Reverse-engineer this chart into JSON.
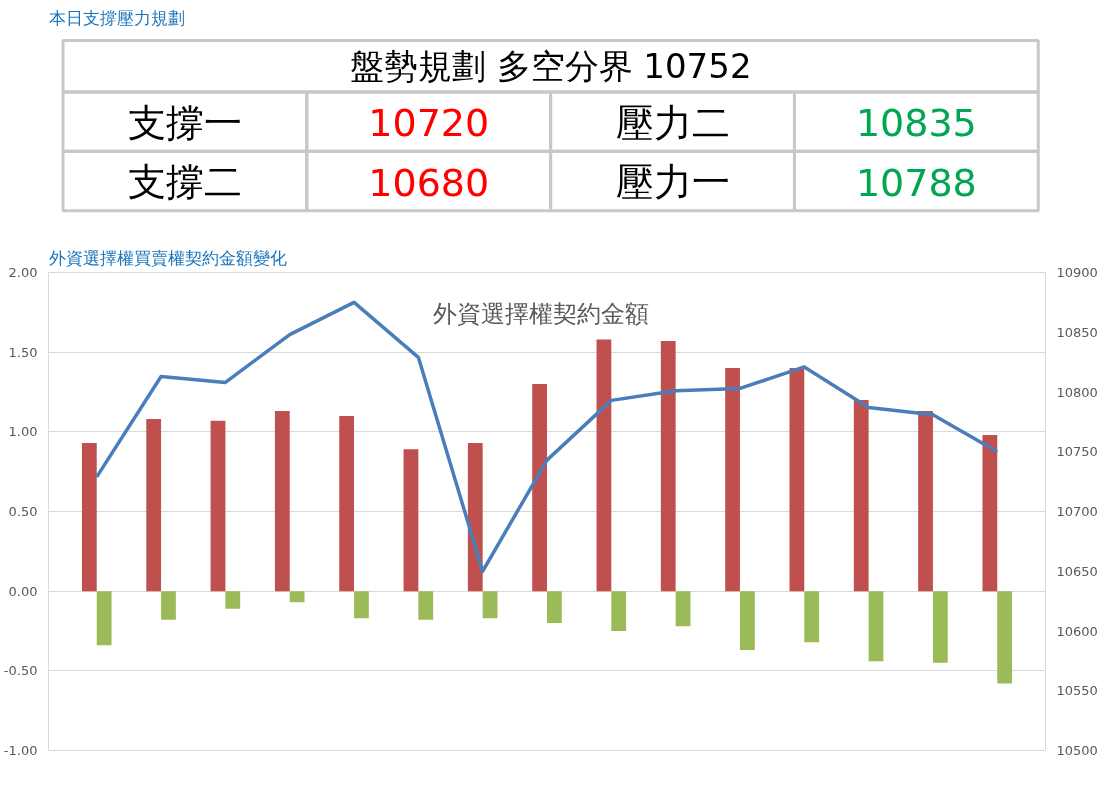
{
  "chart_data": [
    {
      "type": "other",
      "title": "本日支撐壓力規劃",
      "annotations": [
        "盤勢規劃 多空分界 10752",
        "支撐一",
        "10720",
        "壓力二",
        "10835",
        "支撐二",
        "10680",
        "壓力一",
        "10788"
      ],
      "colors": [
        "#000000",
        "#000000",
        "#ff0000",
        "#000000",
        "#00a650",
        "#000000",
        "#ff0000",
        "#000000",
        "#00a650"
      ]
    },
    {
      "type": "bar",
      "title": "外資選擇權買賣權契約金額變化",
      "subtitle": "外資選擇權契約金額",
      "categories": [
        null,
        null,
        null,
        null,
        null,
        null,
        null,
        null,
        null,
        null,
        null,
        null,
        null,
        null,
        null
      ],
      "series": [
        {
          "color": "#c0504d",
          "values": [
            0.93,
            1.08,
            1.07,
            1.13,
            1.1,
            0.89,
            0.93,
            1.3,
            1.58,
            1.57,
            1.4,
            1.4,
            1.2,
            1.13,
            0.98
          ]
        },
        {
          "color": "#9bbb59",
          "values": [
            -0.34,
            -0.18,
            -0.11,
            -0.07,
            -0.17,
            -0.18,
            -0.17,
            -0.2,
            -0.25,
            -0.22,
            -0.37,
            -0.32,
            -0.44,
            -0.45,
            -0.58
          ]
        },
        {
          "type": "line",
          "axis": "y2",
          "color": "#4a7ebb",
          "values": [
            10729,
            10813,
            10808,
            10848,
            10875,
            10829,
            10650,
            10743,
            10793,
            10801,
            10803,
            10821,
            10787,
            10781,
            10750
          ]
        }
      ],
      "ylim": [
        -1,
        2
      ],
      "yticks": [
        {
          "value": -1,
          "label": "-1.00"
        },
        {
          "value": -0.5,
          "label": "-0.50"
        },
        {
          "value": 0,
          "label": "0.00"
        },
        {
          "value": 0.5,
          "label": "0.50"
        },
        {
          "value": 1,
          "label": "1.00"
        },
        {
          "value": 1.5,
          "label": "1.50"
        },
        {
          "value": 2,
          "label": "2.00"
        }
      ],
      "y2lim": [
        10500,
        10900
      ],
      "y2ticks": [
        10500,
        10550,
        10600,
        10650,
        10700,
        10750,
        10800,
        10850,
        10900
      ],
      "grid": "y"
    }
  ]
}
